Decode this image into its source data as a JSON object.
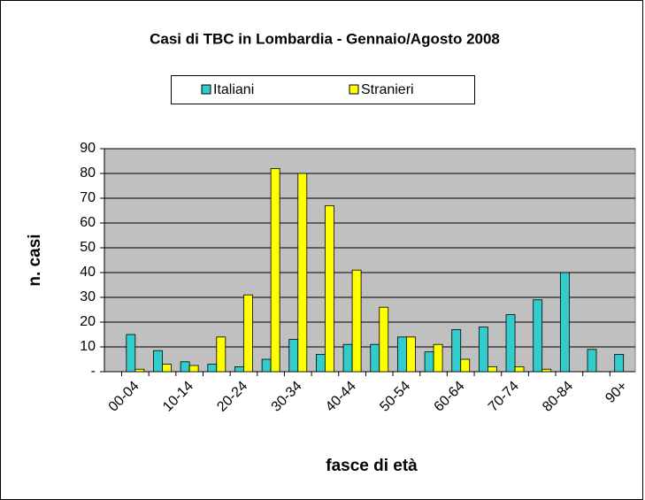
{
  "chart_data": {
    "type": "bar",
    "title": "Casi di TBC in Lombardia - Gennaio/Agosto 2008",
    "x_label": "fasce di età",
    "y_label": "n. casi",
    "categories": [
      "00-04",
      null,
      "10-14",
      null,
      "20-24",
      null,
      "30-34",
      null,
      "40-44",
      null,
      "50-54",
      null,
      "60-64",
      null,
      "70-74",
      null,
      "80-84",
      null,
      "90+"
    ],
    "series": [
      {
        "name": "Italiani",
        "color": "#33cccc",
        "values": [
          15,
          8.5,
          4,
          3,
          2,
          5,
          13,
          7,
          11,
          11,
          14,
          8,
          17,
          18,
          23,
          29,
          40,
          9,
          7
        ]
      },
      {
        "name": "Stranieri",
        "color": "#ffff00",
        "values": [
          1,
          3,
          2.5,
          14,
          31,
          82,
          80,
          67,
          41,
          26,
          14,
          11,
          5,
          2,
          2,
          1,
          0,
          0,
          0
        ]
      }
    ],
    "ylim": [
      0,
      90
    ],
    "yticks": [
      {
        "value": 0,
        "label": "-"
      },
      10,
      20,
      30,
      40,
      50,
      60,
      70,
      80,
      90
    ],
    "grid": true,
    "legend": "top"
  }
}
